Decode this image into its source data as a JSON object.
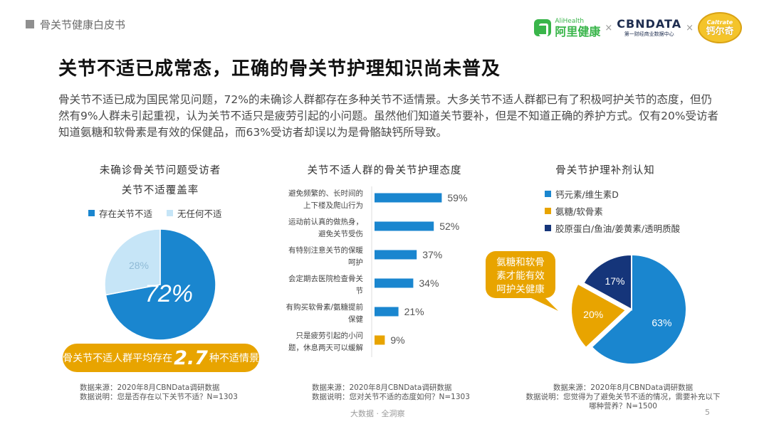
{
  "header": {
    "section_title": "骨关节健康白皮书",
    "logos": {
      "alihealth_en": "AliHealth",
      "alihealth_cn": "阿里健康",
      "separator": "×",
      "cbndata_main": "CBNDATA",
      "cbndata_sub": "第一财经商业数据中心",
      "caltrate_en": "Caltrate",
      "caltrate_cn": "钙尔奇"
    }
  },
  "main": {
    "title": "关节不适已成常态，正确的骨关节护理知识尚未普及",
    "intro": "骨关节不适已成为国民常见问题，72%的未确诊人群都存在多种关节不适情景。大多关节不适人群都已有了积极呵护关节的态度，但仍然有9%人群未引起重视，认为关节不适只是疲劳引起的小问题。虽然他们知道关节要补，但是不知道正确的养护方式。仅有20%受访者知道氨糖和软骨素是有效的保健品，而63%受访者却误以为是骨骼缺钙所导致。"
  },
  "panel1": {
    "title_line1": "未确诊骨关节问题受访者",
    "title_line2": "关节不适覆盖率",
    "banner_pre": "骨关节不适人群平均存在",
    "banner_num": "2.7",
    "banner_post": "种不适情景",
    "source": "数据来源：2020年8月CBNData调研数据",
    "explain": "数据说明：您是否存在以下关节不适？N=1303"
  },
  "panel2": {
    "title": "关节不适人群的骨关节护理态度",
    "source": "数据来源：2020年8月CBNData调研数据",
    "explain": "数据说明：您对关节不适的态度如何？N=1303"
  },
  "panel3": {
    "title": "骨关节护理补剂认知",
    "callout": [
      "氨糖和软骨",
      "素才能有效",
      "呵护关健康"
    ],
    "source": "数据来源：2020年8月CBNData调研数据",
    "explain_line1": "数据说明：您觉得为了避免关节不适的情况，需要补充以下",
    "explain_line2": "哪种营养？N=1500"
  },
  "footer": {
    "center": "大数据 · 全洞察",
    "page": "5"
  },
  "chart_data": [
    {
      "type": "pie",
      "title": "未确诊骨关节问题受访者 关节不适覆盖率",
      "legend_position": "top",
      "categories": [
        "存在关节不适",
        "无任何不适"
      ],
      "values": [
        72,
        28
      ],
      "value_labels": [
        "72%",
        "28%"
      ],
      "colors": [
        "#1a86cf",
        "#c6e5f7"
      ],
      "label_colors": [
        "#ffffff",
        "#8fbad6"
      ]
    },
    {
      "type": "bar",
      "orientation": "horizontal",
      "title": "关节不适人群的骨关节护理态度",
      "categories": [
        [
          "避免频繁的、长时间的",
          "上下楼及爬山行为"
        ],
        [
          "运动前认真的做热身，",
          "避免关节受伤"
        ],
        [
          "有特别注意关节的保暖",
          "呵护"
        ],
        [
          "会定期去医院检查骨关",
          "节"
        ],
        [
          "有购买软骨素/氨糖提前",
          "保健"
        ],
        [
          "只是疲劳引起的小问",
          "题，休息两天可以缓解"
        ]
      ],
      "values": [
        59,
        52,
        37,
        34,
        21,
        9
      ],
      "value_labels": [
        "59%",
        "52%",
        "37%",
        "34%",
        "21%",
        "9%"
      ],
      "colors": [
        "#1a86cf",
        "#1a86cf",
        "#1a86cf",
        "#1a86cf",
        "#1a86cf",
        "#e8a400"
      ],
      "xlim": [
        0,
        100
      ],
      "grid": false
    },
    {
      "type": "pie",
      "title": "骨关节护理补剂认知",
      "legend_position": "top-right",
      "categories": [
        "钙元素/维生素D",
        "氨糖/软骨素",
        "胶原蛋白/鱼油/姜黄素/透明质酸"
      ],
      "values": [
        63,
        20,
        17
      ],
      "value_labels": [
        "63%",
        "20%",
        "17%"
      ],
      "colors": [
        "#1a86cf",
        "#e8a400",
        "#15357a"
      ],
      "exploded": [
        false,
        true,
        false
      ]
    }
  ]
}
